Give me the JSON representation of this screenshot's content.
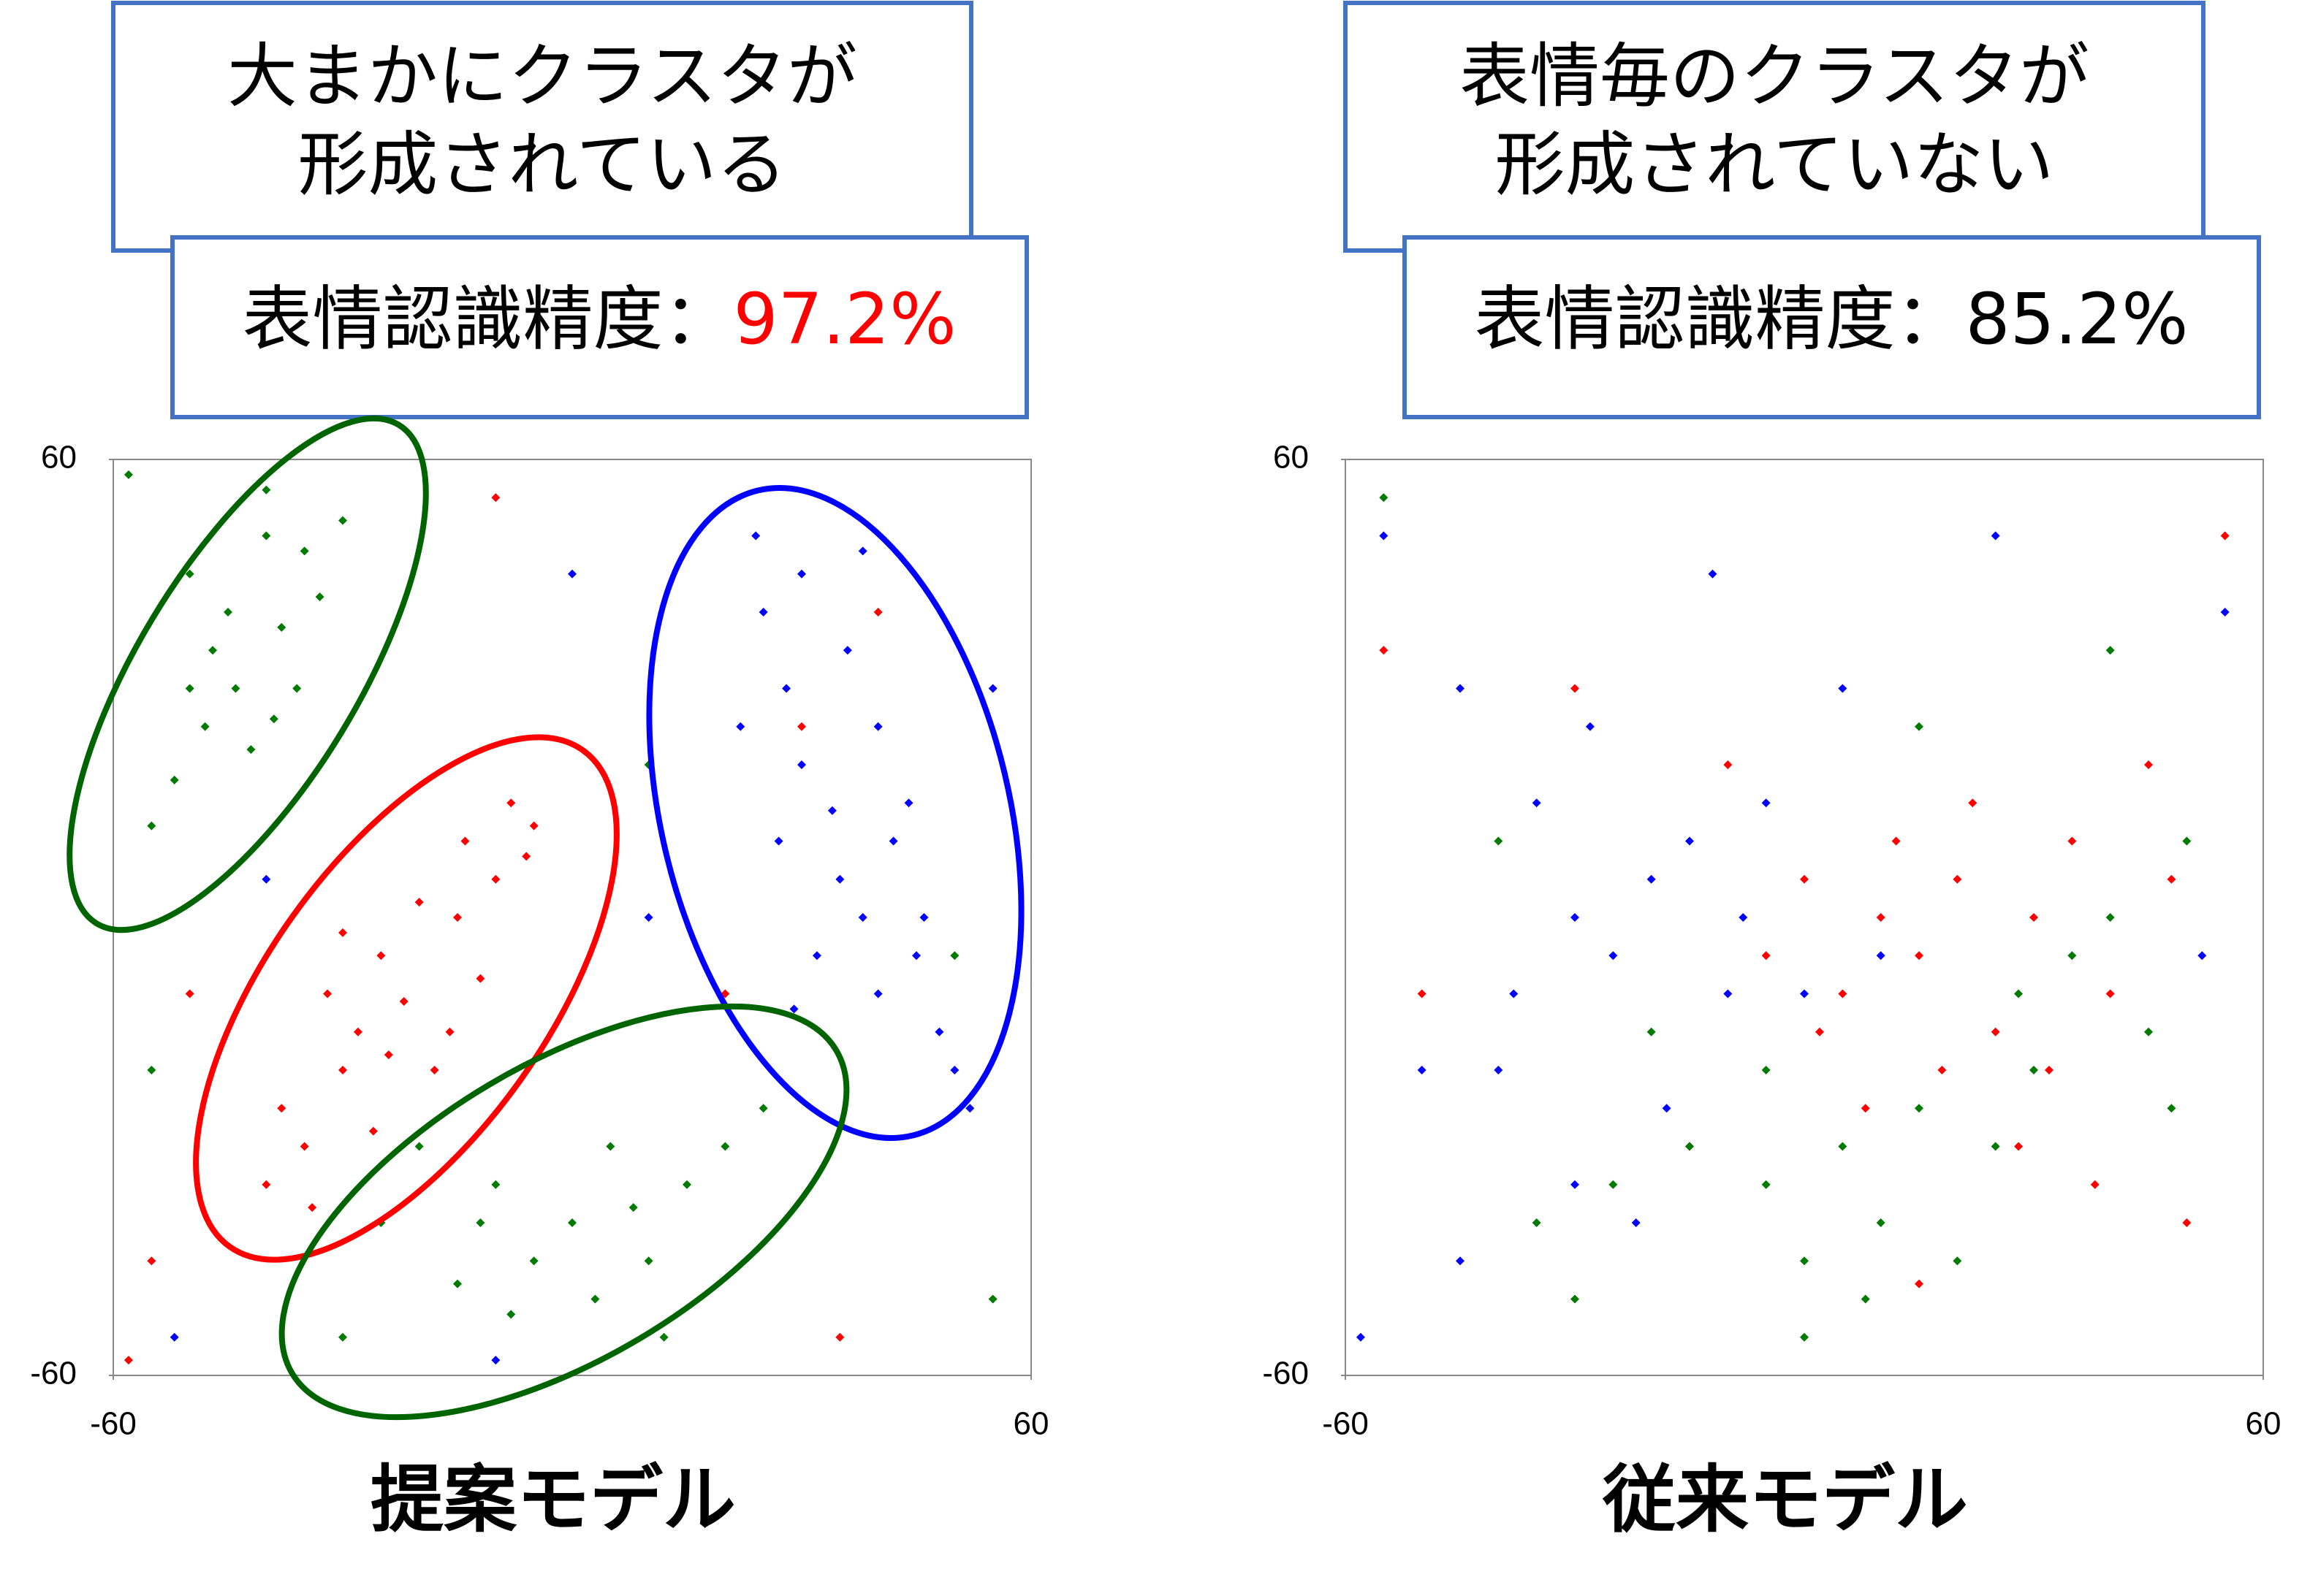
{
  "chart_data": [
    {
      "type": "scatter",
      "title": "提案モデル",
      "annotation": [
        "大まかにクラスタが",
        "形成されている"
      ],
      "accuracy_label": "表情認識精度：",
      "accuracy": "97.2%",
      "xlim": [
        -60,
        60
      ],
      "ylim": [
        -60,
        60
      ],
      "xticks": [
        -60,
        60
      ],
      "yticks": [
        -60,
        60
      ],
      "series": [
        {
          "color": "#007a00",
          "x": [
            -50,
            -45,
            -40,
            -35,
            -38,
            -44,
            -48,
            -52,
            -55,
            -42,
            -36,
            -33,
            -30,
            -40,
            -47,
            -39,
            -50,
            -20,
            -10,
            0,
            10,
            15,
            5,
            -5,
            -15,
            -25,
            20,
            25,
            -8,
            3,
            12,
            -12,
            8,
            -58,
            10,
            50,
            55,
            -30,
            -55
          ],
          "y": [
            45,
            40,
            50,
            48,
            38,
            30,
            25,
            18,
            12,
            22,
            30,
            42,
            52,
            56,
            35,
            26,
            30,
            -30,
            -35,
            -40,
            -45,
            -35,
            -30,
            -45,
            -48,
            -40,
            -30,
            -25,
            -52,
            -50,
            -55,
            -40,
            -38,
            58,
            20,
            -5,
            -50,
            -55,
            -20
          ]
        },
        {
          "color": "#ff0000",
          "x": [
            -22,
            -30,
            -35,
            -40,
            -15,
            -10,
            -5,
            -8,
            -25,
            -28,
            -18,
            -12,
            -32,
            -20,
            -38,
            -26,
            -16,
            -6,
            -24,
            -34,
            -14,
            -30,
            -55,
            -58,
            -50,
            30,
            40,
            20,
            -10,
            35
          ],
          "y": [
            -11,
            -20,
            -30,
            -35,
            0,
            5,
            12,
            15,
            -5,
            -15,
            -20,
            -8,
            -10,
            2,
            -25,
            -28,
            -15,
            8,
            -18,
            -38,
            10,
            -2,
            -45,
            -58,
            -10,
            25,
            40,
            -10,
            55,
            -55
          ]
        },
        {
          "color": "#0000ff",
          "x": [
            34,
            28,
            25,
            30,
            36,
            40,
            42,
            38,
            45,
            48,
            50,
            30,
            22,
            35,
            44,
            32,
            27,
            40,
            46,
            24,
            38,
            52,
            29,
            -40,
            -10,
            55,
            0,
            -52,
            10
          ],
          "y": [
            14,
            30,
            40,
            45,
            35,
            25,
            10,
            0,
            -5,
            -15,
            -20,
            20,
            25,
            5,
            15,
            -5,
            10,
            -10,
            0,
            50,
            48,
            -25,
            -12,
            5,
            -58,
            30,
            45,
            -55,
            0
          ]
        }
      ]
    },
    {
      "type": "scatter",
      "title": "従来モデル",
      "annotation": [
        "表情毎のクラスタが",
        "形成されていない"
      ],
      "accuracy_label": "表情認識精度：",
      "accuracy": "85.2%",
      "xlim": [
        -60,
        60
      ],
      "ylim": [
        -60,
        60
      ],
      "xticks": [
        -60,
        60
      ],
      "yticks": [
        -60,
        60
      ],
      "series": [
        {
          "color": "#ff0000",
          "x": [
            10,
            15,
            20,
            5,
            25,
            30,
            12,
            18,
            -5,
            35,
            40,
            22,
            8,
            28,
            0,
            45,
            -30,
            55,
            -55,
            50,
            15,
            -50,
            38,
            -10,
            2,
            32,
            -15,
            48
          ],
          "y": [
            0,
            -5,
            5,
            -10,
            -15,
            0,
            10,
            -20,
            -5,
            10,
            -10,
            15,
            -25,
            -30,
            5,
            20,
            30,
            50,
            35,
            -40,
            -48,
            -10,
            -35,
            20,
            -15,
            -20,
            -30,
            5
          ]
        },
        {
          "color": "#0000ff",
          "x": [
            -20,
            -25,
            -15,
            -30,
            -10,
            -35,
            -40,
            -28,
            -5,
            -18,
            -45,
            -55,
            -50,
            -30,
            -45,
            5,
            -38,
            0,
            -22,
            25,
            55,
            -58,
            -12,
            52,
            -8,
            10
          ],
          "y": [
            5,
            -5,
            10,
            0,
            -10,
            15,
            -20,
            25,
            15,
            -25,
            30,
            50,
            -20,
            -35,
            -45,
            30,
            -10,
            -10,
            -40,
            50,
            40,
            -55,
            45,
            -5,
            0,
            -5
          ]
        },
        {
          "color": "#007a00",
          "x": [
            -15,
            -5,
            5,
            15,
            25,
            -25,
            0,
            10,
            20,
            30,
            35,
            40,
            45,
            -20,
            -35,
            50,
            -5,
            8,
            -40,
            40,
            -55,
            15,
            -30,
            0,
            28,
            48
          ],
          "y": [
            -30,
            -35,
            -30,
            -25,
            -30,
            -35,
            -45,
            -40,
            -45,
            -20,
            -5,
            0,
            -15,
            -15,
            -40,
            10,
            -20,
            -50,
            10,
            35,
            55,
            25,
            -50,
            -55,
            -10,
            -25
          ]
        }
      ]
    }
  ]
}
